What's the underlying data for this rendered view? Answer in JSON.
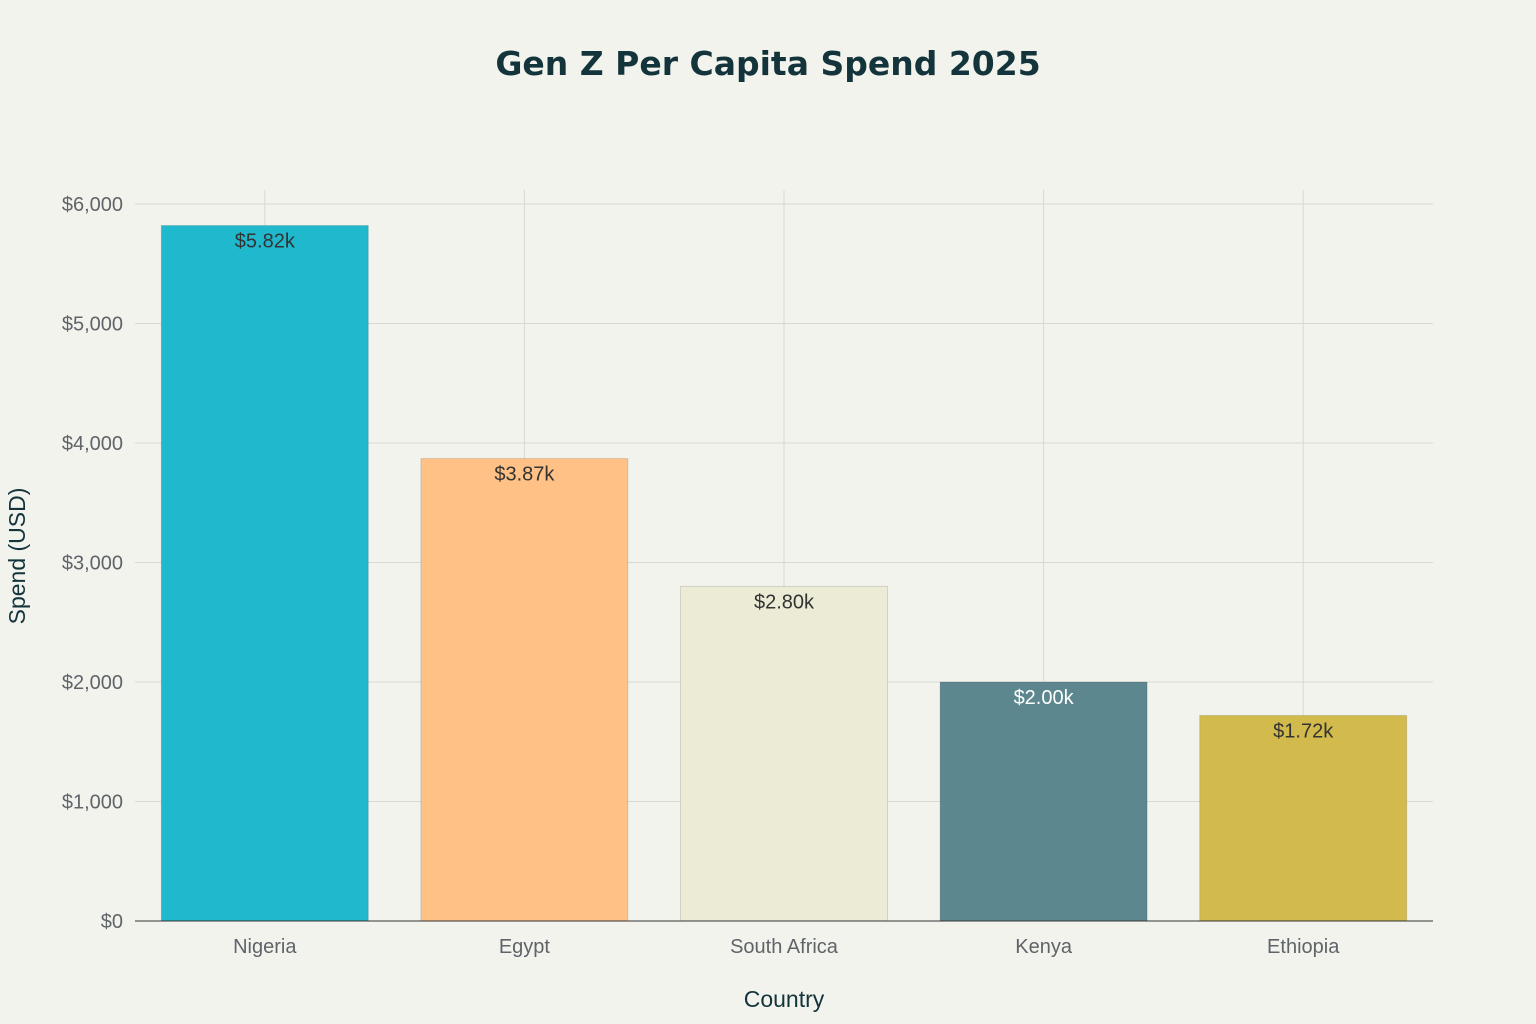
{
  "chart_data": {
    "type": "bar",
    "title": "Gen Z Per Capita Spend 2025",
    "xlabel": "Country",
    "ylabel": "Spend (USD)",
    "categories": [
      "Nigeria",
      "Egypt",
      "South Africa",
      "Kenya",
      "Ethiopia"
    ],
    "values": [
      5820,
      3870,
      2800,
      2000,
      1720
    ],
    "data_labels": [
      "$5.82k",
      "$3.87k",
      "$2.80k",
      "$2.00k",
      "$1.72k"
    ],
    "colors": [
      "#1FB8CD",
      "#FFC185",
      "#ECEBD5",
      "#5D878F",
      "#D2BA4C"
    ],
    "label_colors": [
      "#333333",
      "#333333",
      "#333333",
      "#FFFFFF",
      "#333333"
    ],
    "ylim": [
      0,
      6000
    ],
    "yticks": [
      0,
      1000,
      2000,
      3000,
      4000,
      5000,
      6000
    ],
    "ytick_labels": [
      "$0",
      "$1,000",
      "$2,000",
      "$3,000",
      "$4,000",
      "$5,000",
      "$6,000"
    ],
    "grid": true,
    "legend": "none"
  }
}
